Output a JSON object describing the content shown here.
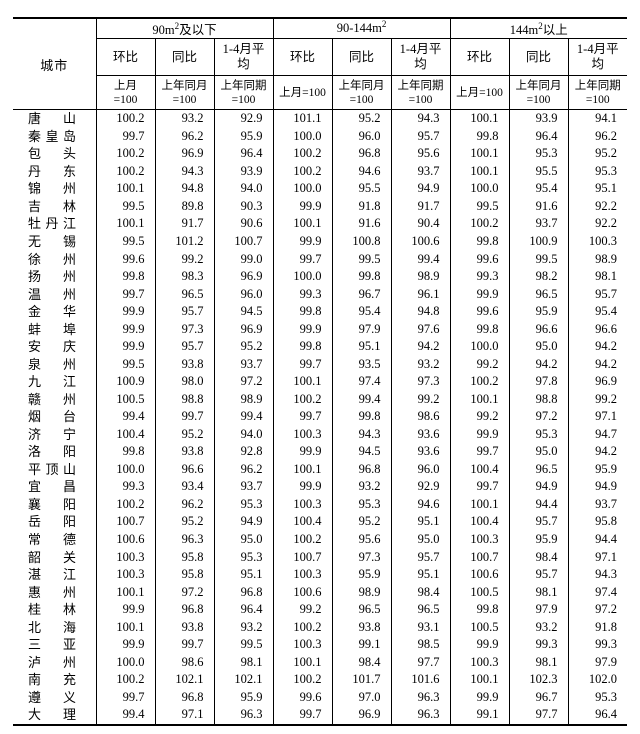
{
  "page": {
    "background": "#ffffff",
    "border_color": "#000000",
    "text_color": "#000000"
  },
  "table": {
    "city_header": "城市",
    "groups": [
      {
        "title_base": "90m",
        "title_sup": "2",
        "title_rest": "及以下",
        "cols": [
          {
            "label": "环比",
            "sub": "上月\n=100"
          },
          {
            "label": "同比",
            "sub": "上年同月\n=100"
          },
          {
            "label": "1-4月平\n均",
            "sub": "上年同期\n=100"
          }
        ]
      },
      {
        "title_base": "90-144m",
        "title_sup": "2",
        "title_rest": "",
        "cols": [
          {
            "label": "环比",
            "sub": "上月=100"
          },
          {
            "label": "同比",
            "sub": "上年同月\n=100"
          },
          {
            "label": "1-4月平\n均",
            "sub": "上年同期\n=100"
          }
        ]
      },
      {
        "title_base": "144m",
        "title_sup": "2",
        "title_rest": "以上",
        "cols": [
          {
            "label": "环比",
            "sub": "上月=100"
          },
          {
            "label": "同比",
            "sub": "上年同月\n=100"
          },
          {
            "label": "1-4月平\n均",
            "sub": "上年同期\n=100"
          }
        ]
      }
    ],
    "rows": [
      {
        "city": "唐山",
        "values": [
          "100.2",
          "93.2",
          "92.9",
          "101.1",
          "95.2",
          "94.3",
          "100.1",
          "93.9",
          "94.1"
        ]
      },
      {
        "city": "秦皇岛",
        "values": [
          "99.7",
          "96.2",
          "95.9",
          "100.0",
          "96.0",
          "95.7",
          "99.8",
          "96.4",
          "96.2"
        ]
      },
      {
        "city": "包头",
        "values": [
          "100.2",
          "96.9",
          "96.4",
          "100.2",
          "96.8",
          "95.6",
          "100.1",
          "95.3",
          "95.2"
        ]
      },
      {
        "city": "丹东",
        "values": [
          "100.2",
          "94.3",
          "93.9",
          "100.2",
          "94.6",
          "93.7",
          "100.1",
          "95.5",
          "95.3"
        ]
      },
      {
        "city": "锦州",
        "values": [
          "100.1",
          "94.8",
          "94.0",
          "100.0",
          "95.5",
          "94.9",
          "100.0",
          "95.4",
          "95.1"
        ]
      },
      {
        "city": "吉林",
        "values": [
          "99.5",
          "89.8",
          "90.3",
          "99.9",
          "91.8",
          "91.7",
          "99.5",
          "91.6",
          "92.2"
        ]
      },
      {
        "city": "牡丹江",
        "values": [
          "100.1",
          "91.7",
          "90.6",
          "100.1",
          "91.6",
          "90.4",
          "100.2",
          "93.7",
          "92.2"
        ]
      },
      {
        "city": "无锡",
        "values": [
          "99.5",
          "101.2",
          "100.7",
          "99.9",
          "100.8",
          "100.6",
          "99.8",
          "100.9",
          "100.3"
        ]
      },
      {
        "city": "徐州",
        "values": [
          "99.6",
          "99.2",
          "99.0",
          "99.7",
          "99.5",
          "99.4",
          "99.6",
          "99.5",
          "98.9"
        ]
      },
      {
        "city": "扬州",
        "values": [
          "99.8",
          "98.3",
          "96.9",
          "100.0",
          "99.8",
          "98.9",
          "99.3",
          "98.2",
          "98.1"
        ]
      },
      {
        "city": "温州",
        "values": [
          "99.7",
          "96.5",
          "96.0",
          "99.3",
          "96.7",
          "96.1",
          "99.9",
          "96.5",
          "95.7"
        ]
      },
      {
        "city": "金华",
        "values": [
          "99.9",
          "95.7",
          "94.5",
          "99.8",
          "95.4",
          "94.8",
          "99.6",
          "95.9",
          "95.4"
        ]
      },
      {
        "city": "蚌埠",
        "values": [
          "99.9",
          "97.3",
          "96.9",
          "99.9",
          "97.9",
          "97.6",
          "99.8",
          "96.6",
          "96.6"
        ]
      },
      {
        "city": "安庆",
        "values": [
          "99.9",
          "95.7",
          "95.2",
          "99.8",
          "95.1",
          "94.2",
          "100.0",
          "95.0",
          "94.2"
        ]
      },
      {
        "city": "泉州",
        "values": [
          "99.5",
          "93.8",
          "93.7",
          "99.7",
          "93.5",
          "93.2",
          "99.2",
          "94.2",
          "94.2"
        ]
      },
      {
        "city": "九江",
        "values": [
          "100.9",
          "98.0",
          "97.2",
          "100.1",
          "97.4",
          "97.3",
          "100.2",
          "97.8",
          "96.9"
        ]
      },
      {
        "city": "赣州",
        "values": [
          "100.5",
          "98.8",
          "98.9",
          "100.2",
          "99.4",
          "99.2",
          "100.1",
          "98.8",
          "99.2"
        ]
      },
      {
        "city": "烟台",
        "values": [
          "99.4",
          "99.7",
          "99.4",
          "99.7",
          "99.8",
          "98.6",
          "99.2",
          "97.2",
          "97.1"
        ]
      },
      {
        "city": "济宁",
        "values": [
          "100.4",
          "95.2",
          "94.0",
          "100.3",
          "94.3",
          "93.6",
          "99.9",
          "95.3",
          "94.7"
        ]
      },
      {
        "city": "洛阳",
        "values": [
          "99.8",
          "93.8",
          "92.8",
          "99.9",
          "94.5",
          "93.6",
          "99.7",
          "95.0",
          "94.2"
        ]
      },
      {
        "city": "平顶山",
        "values": [
          "100.0",
          "96.6",
          "96.2",
          "100.1",
          "96.8",
          "96.0",
          "100.4",
          "96.5",
          "95.9"
        ]
      },
      {
        "city": "宜昌",
        "values": [
          "99.3",
          "93.4",
          "93.7",
          "99.9",
          "93.2",
          "92.9",
          "99.7",
          "94.9",
          "94.9"
        ]
      },
      {
        "city": "襄阳",
        "values": [
          "100.2",
          "96.2",
          "95.3",
          "100.3",
          "95.3",
          "94.6",
          "100.1",
          "94.4",
          "93.7"
        ]
      },
      {
        "city": "岳阳",
        "values": [
          "100.7",
          "95.2",
          "94.9",
          "100.4",
          "95.2",
          "95.1",
          "100.4",
          "95.7",
          "95.8"
        ]
      },
      {
        "city": "常德",
        "values": [
          "100.6",
          "96.3",
          "95.0",
          "100.2",
          "95.6",
          "95.0",
          "100.3",
          "95.9",
          "94.4"
        ]
      },
      {
        "city": "韶关",
        "values": [
          "100.3",
          "95.8",
          "95.3",
          "100.7",
          "97.3",
          "95.7",
          "100.7",
          "98.4",
          "97.1"
        ]
      },
      {
        "city": "湛江",
        "values": [
          "100.3",
          "95.8",
          "95.1",
          "100.3",
          "95.9",
          "95.1",
          "100.6",
          "95.7",
          "94.3"
        ]
      },
      {
        "city": "惠州",
        "values": [
          "100.1",
          "97.2",
          "96.8",
          "100.6",
          "98.9",
          "98.4",
          "100.5",
          "98.1",
          "97.4"
        ]
      },
      {
        "city": "桂林",
        "values": [
          "99.9",
          "96.8",
          "96.4",
          "99.2",
          "96.5",
          "96.5",
          "99.8",
          "97.9",
          "97.2"
        ]
      },
      {
        "city": "北海",
        "values": [
          "100.1",
          "93.8",
          "93.2",
          "100.2",
          "93.8",
          "93.1",
          "100.5",
          "93.2",
          "91.8"
        ]
      },
      {
        "city": "三亚",
        "values": [
          "99.9",
          "99.7",
          "99.5",
          "100.3",
          "99.1",
          "98.5",
          "99.9",
          "99.3",
          "99.3"
        ]
      },
      {
        "city": "泸州",
        "values": [
          "100.0",
          "98.6",
          "98.1",
          "100.1",
          "98.4",
          "97.7",
          "100.3",
          "98.1",
          "97.9"
        ]
      },
      {
        "city": "南充",
        "values": [
          "100.2",
          "102.1",
          "102.1",
          "100.2",
          "101.7",
          "101.6",
          "100.1",
          "102.3",
          "102.0"
        ]
      },
      {
        "city": "遵义",
        "values": [
          "99.7",
          "96.8",
          "95.9",
          "99.6",
          "97.0",
          "96.3",
          "99.9",
          "96.7",
          "95.3"
        ]
      },
      {
        "city": "大理",
        "values": [
          "99.4",
          "97.1",
          "96.3",
          "99.7",
          "96.9",
          "96.3",
          "99.1",
          "97.7",
          "96.4"
        ]
      }
    ]
  }
}
